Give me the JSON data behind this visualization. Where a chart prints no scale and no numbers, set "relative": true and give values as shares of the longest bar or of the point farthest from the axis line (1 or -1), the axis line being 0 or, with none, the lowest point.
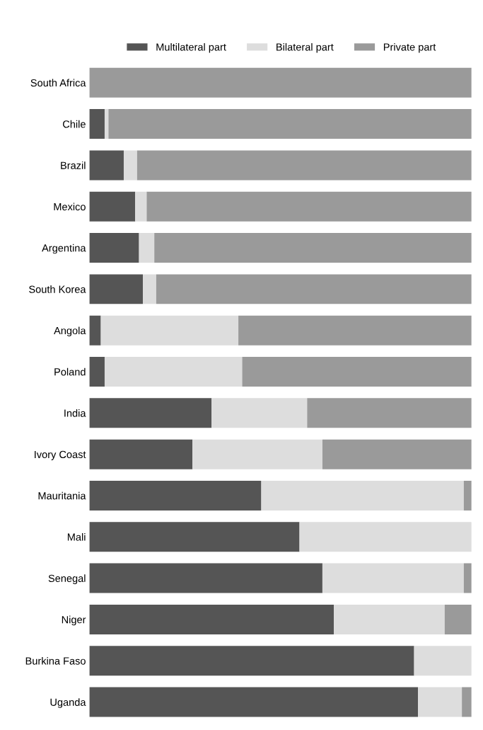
{
  "chart_data": {
    "type": "bar",
    "orientation": "horizontal",
    "stacked": true,
    "relative": true,
    "legend": "top",
    "grid": false,
    "categories": [
      "South Africa",
      "Chile",
      "Brazil",
      "Mexico",
      "Argentina",
      "South Korea",
      "Angola",
      "Poland",
      "India",
      "Ivory Coast",
      "Mauritania",
      "Mali",
      "Senegal",
      "Niger",
      "Burkina Faso",
      "Uganda"
    ],
    "series": [
      {
        "name": "Multilateral part",
        "color": "#555555",
        "values": [
          0,
          0.04,
          0.09,
          0.12,
          0.13,
          0.14,
          0.03,
          0.04,
          0.32,
          0.27,
          0.45,
          0.55,
          0.61,
          0.64,
          0.85,
          0.86
        ]
      },
      {
        "name": "Bilateral part",
        "color": "#dddddd",
        "values": [
          0,
          0.01,
          0.035,
          0.03,
          0.04,
          0.035,
          0.36,
          0.36,
          0.25,
          0.34,
          0.53,
          0.45,
          0.37,
          0.29,
          0.15,
          0.115
        ]
      },
      {
        "name": "Private part",
        "color": "#9a9a9a",
        "values": [
          1,
          0.95,
          0.875,
          0.85,
          0.83,
          0.825,
          0.61,
          0.6,
          0.43,
          0.39,
          0.02,
          0,
          0.02,
          0.07,
          0,
          0.025
        ]
      }
    ]
  }
}
